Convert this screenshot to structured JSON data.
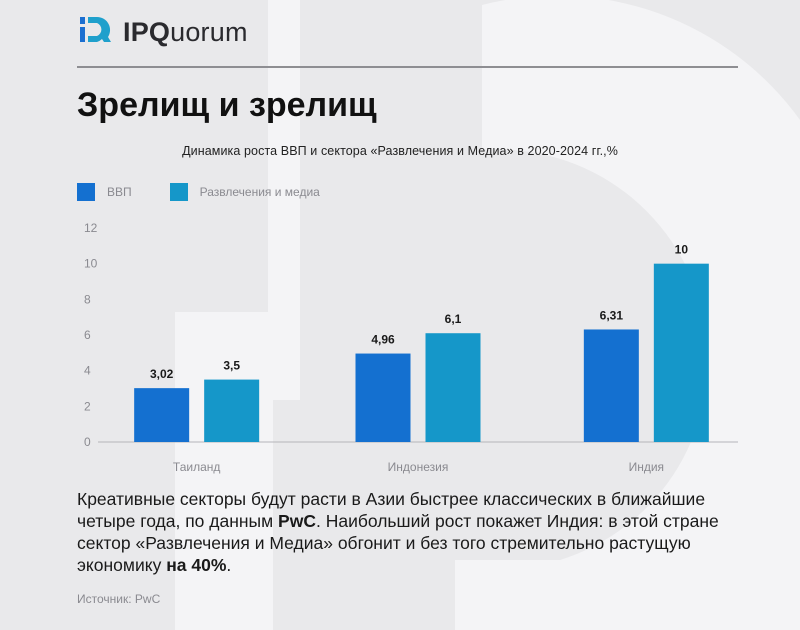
{
  "brand": {
    "prefix": "IPQ",
    "suffix": "uorum"
  },
  "headline": "Зрелищ и зрелищ",
  "chart_data": {
    "type": "bar",
    "title": "Динамика роста ВВП и сектора «Развлечения и Медиа» в 2020-2024 гг.,%",
    "categories": [
      "Таиланд",
      "Индонезия",
      "Индия"
    ],
    "series": [
      {
        "name": "ВВП",
        "values": [
          3.02,
          4.96,
          6.31
        ],
        "labels": [
          "3,02",
          "4,96",
          "6,31"
        ],
        "color": "#1470d0"
      },
      {
        "name": "Развлечения и медиа",
        "values": [
          3.5,
          6.1,
          10
        ],
        "labels": [
          "3,5",
          "6,1",
          "10"
        ],
        "color": "#1597c9"
      }
    ],
    "ylim": [
      0,
      12
    ],
    "yticks": [
      0,
      2,
      4,
      6,
      8,
      10,
      12
    ],
    "grid": false,
    "legend": "top-left"
  },
  "body": {
    "p1": "Креативные секторы будут расти в Азии быстрее классических в ближайшие четыре года, по данным ",
    "b1": "PwC",
    "p2": ". Наибольший рост покажет Индия: в этой стране сектор «Развлечения и Медиа» обгонит и без того стремительно растущую экономику ",
    "b2": "на 40%",
    "p3": "."
  },
  "source": "Источник: PwC"
}
